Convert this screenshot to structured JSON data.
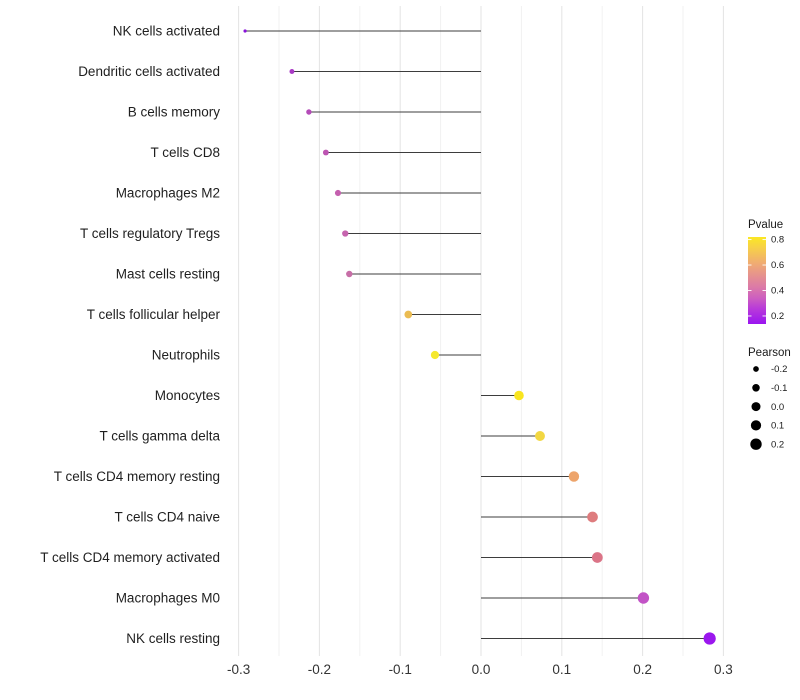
{
  "chart_data": {
    "type": "lollipop",
    "orientation": "horizontal",
    "title": "",
    "xlabel": "",
    "ylabel": "",
    "categories": [
      "NK cells activated",
      "Dendritic cells activated",
      "B cells memory",
      "T cells CD8",
      "Macrophages M2",
      "T cells regulatory  Tregs",
      "Mast cells resting",
      "T cells follicular helper",
      "Neutrophils",
      "Monocytes",
      "T cells gamma delta",
      "T cells CD4 memory resting",
      "T cells CD4 naive",
      "T cells CD4 memory activated",
      "Macrophages M0",
      "NK cells resting"
    ],
    "series": [
      {
        "name": "Pearson",
        "values": [
          -0.292,
          -0.234,
          -0.213,
          -0.192,
          -0.177,
          -0.168,
          -0.163,
          -0.09,
          -0.057,
          0.047,
          0.073,
          0.115,
          0.138,
          0.144,
          0.201,
          0.283
        ]
      }
    ],
    "point_colors": [
      "#8912DB",
      "#A93AC5",
      "#B44BB8",
      "#BD55B2",
      "#C45FAE",
      "#C664AE",
      "#C76EA7",
      "#EBBC52",
      "#F5E82E",
      "#F9E51F",
      "#F2D742",
      "#EDA46B",
      "#DE7C7E",
      "#DB7487",
      "#C253C6",
      "#9B17EE"
    ],
    "stem_origin": 0.0,
    "xlim": [
      -0.333,
      0.329
    ],
    "x_ticks": {
      "labels": [
        "-0.3",
        "-0.2",
        "-0.1",
        "0.0",
        "0.1",
        "0.2",
        "0.3"
      ],
      "values": [
        -0.3,
        -0.2,
        -0.1,
        0.0,
        0.1,
        0.2,
        0.3
      ]
    },
    "grid": {
      "major_step": 0.1,
      "minor_step": 0.05,
      "horizontal_lines": false
    },
    "legend_color": {
      "title": "Pvalue",
      "tick_labels": [
        "0.8",
        "0.6",
        "0.4",
        "0.2"
      ],
      "tick_values": [
        0.8,
        0.6,
        0.4,
        0.2
      ],
      "bar_value_range": [
        0.137,
        0.82
      ],
      "gradient_top_to_bottom": [
        {
          "offset": 0,
          "color": "#FBE723"
        },
        {
          "offset": 12,
          "color": "#F7D147"
        },
        {
          "offset": 30,
          "color": "#F0AC72"
        },
        {
          "offset": 45,
          "color": "#E59090"
        },
        {
          "offset": 58,
          "color": "#DB79A8"
        },
        {
          "offset": 70,
          "color": "#CD5FC0"
        },
        {
          "offset": 82,
          "color": "#B93BD9"
        },
        {
          "offset": 100,
          "color": "#9A15F0"
        }
      ]
    },
    "legend_size": {
      "title": "Pearson",
      "labels": [
        "-0.2",
        "-0.1",
        "0.0",
        "0.1",
        "0.2"
      ],
      "values": [
        -0.2,
        -0.1,
        0.0,
        0.1,
        0.2
      ],
      "dot_color": "#000000"
    },
    "colors": {
      "stem": "#3D3D3D",
      "grid_major": "#E3E3E3",
      "grid_minor": "#F0F0F0",
      "axis_tick_text": "#333333",
      "category_text": "#1F1F1F",
      "legend_text": "#1A1A1A",
      "background": "#FFFFFF"
    }
  }
}
